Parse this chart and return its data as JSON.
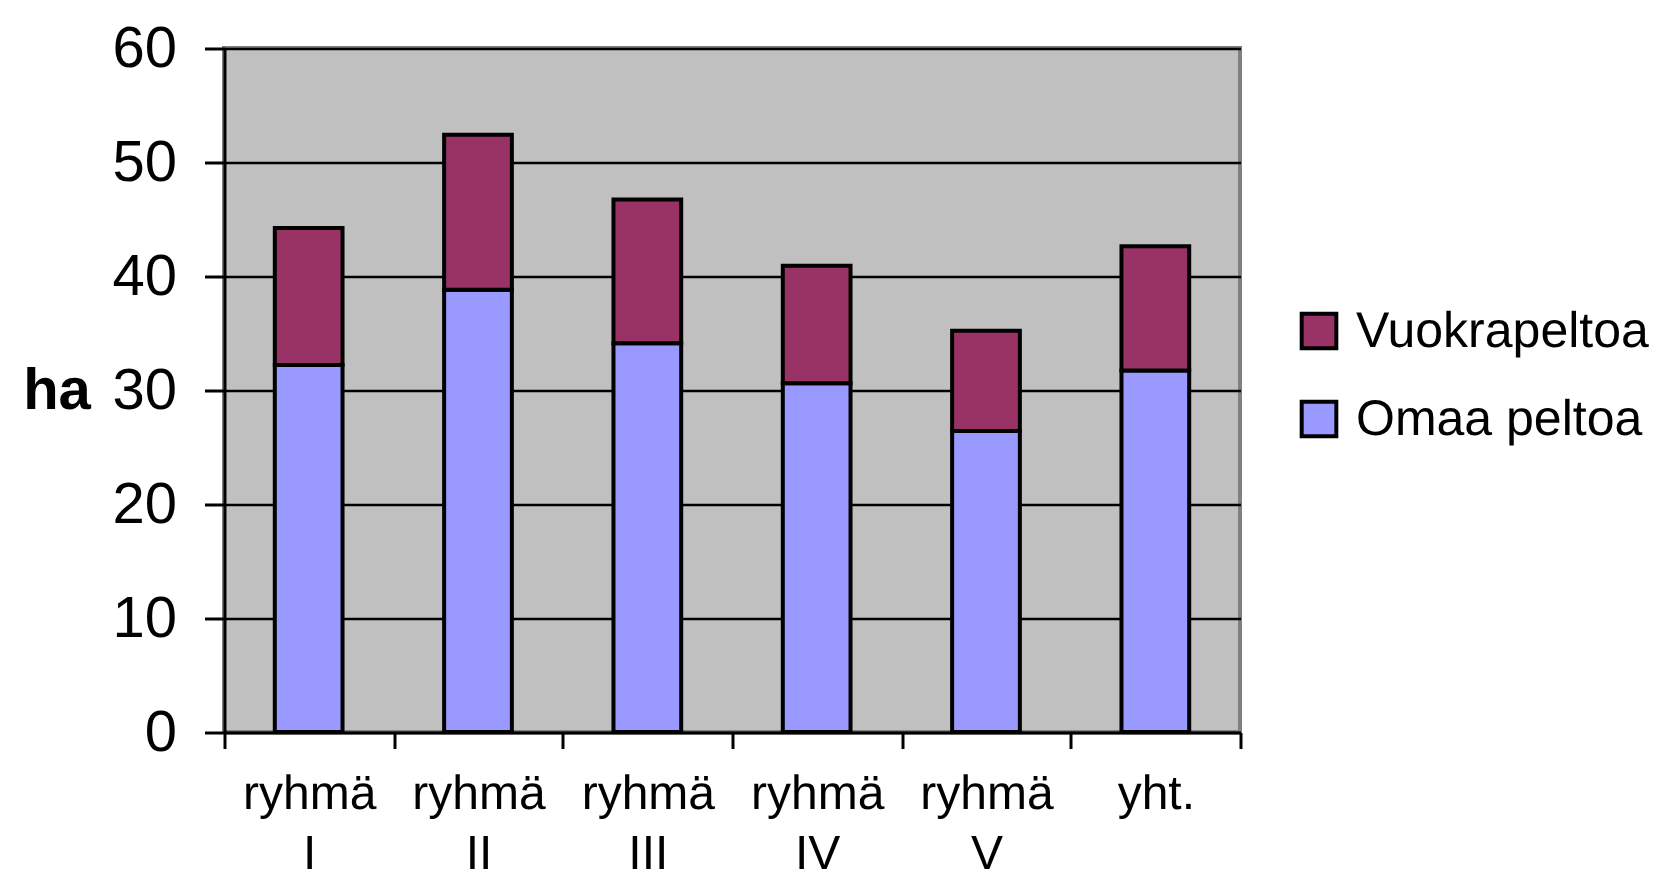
{
  "chart_data": {
    "type": "bar",
    "ylabel": "ha",
    "categories": [
      "ryhmä I",
      "ryhmä II",
      "ryhmä III",
      "ryhmä IV",
      "ryhmä V",
      "yht."
    ],
    "stacked": true,
    "series": [
      {
        "name": "Omaa peltoa",
        "color": "#9999ff",
        "values": [
          32.2,
          38.8,
          34.1,
          30.6,
          26.4,
          31.7
        ]
      },
      {
        "name": "Vuokrapeltoa",
        "color": "#993366",
        "values": [
          12,
          13.6,
          12.6,
          10.3,
          8.8,
          10.9
        ]
      }
    ],
    "ylim": [
      0,
      60
    ],
    "yticks": [
      0,
      10,
      20,
      30,
      40,
      50,
      60
    ],
    "grid": "y",
    "legend": "right"
  }
}
